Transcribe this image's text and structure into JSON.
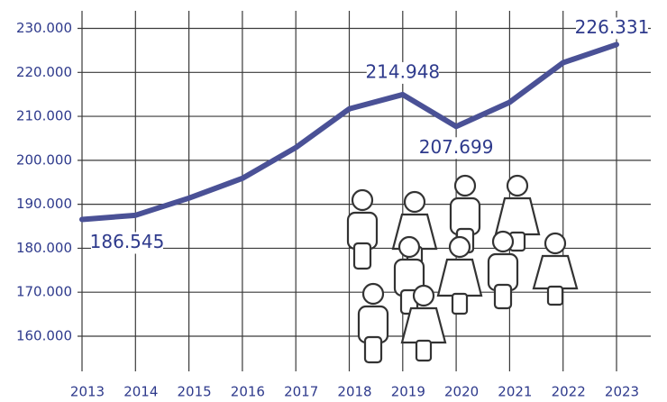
{
  "chart_data": {
    "type": "line",
    "categories": [
      "2013",
      "2014",
      "2015",
      "2016",
      "2017",
      "2018",
      "2019",
      "2020",
      "2021",
      "2022",
      "2023"
    ],
    "values": [
      186545,
      187500,
      191400,
      195900,
      202900,
      211700,
      214948,
      207699,
      213200,
      222200,
      226331
    ],
    "value_labels": [
      "186.545",
      null,
      null,
      null,
      null,
      null,
      "214.948",
      "207.699",
      null,
      null,
      "226.331"
    ],
    "color": "#4a5196",
    "ylim": [
      152000,
      234000
    ],
    "yticks": [
      {
        "value": 160000,
        "label": "160.000"
      },
      {
        "value": 170000,
        "label": "170.000"
      },
      {
        "value": 180000,
        "label": "180.000"
      },
      {
        "value": 190000,
        "label": "190.000"
      },
      {
        "value": 200000,
        "label": "200.000"
      },
      {
        "value": 210000,
        "label": "210.000"
      },
      {
        "value": 220000,
        "label": "220.000"
      },
      {
        "value": 230000,
        "label": "230.000"
      }
    ],
    "grid": true
  }
}
